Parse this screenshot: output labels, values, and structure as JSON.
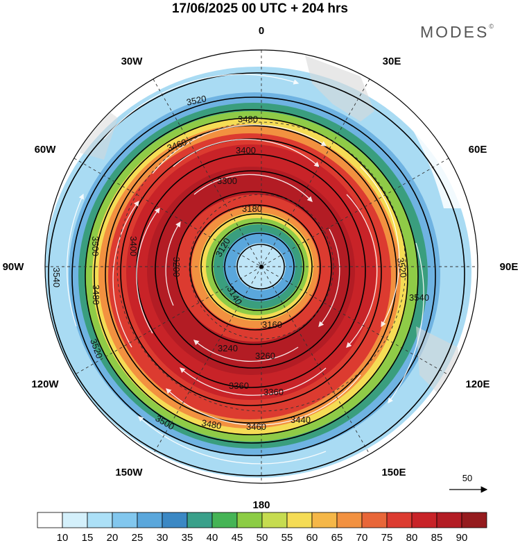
{
  "title": "17/06/2025  00 UTC  + 204 hrs",
  "brand": "MODES",
  "brand_mark": "©",
  "longitude_labels": {
    "north": "0",
    "ne": "30E",
    "ene": "60E",
    "east": "90E",
    "ese": "120E",
    "se": "150E",
    "south": "180",
    "sw": "150W",
    "wsw": "120W",
    "west": "90W",
    "wnw": "60W",
    "nw": "30W"
  },
  "contour_labels": [
    "3520",
    "3480",
    "3460",
    "3400",
    "3300",
    "3180",
    "3120",
    "3140",
    "3160",
    "3200",
    "3240",
    "3260",
    "3360",
    "3440",
    "3500",
    "3540",
    "3480",
    "3520",
    "3500",
    "3400",
    "3360",
    "3460",
    "3480",
    "3540",
    "3520"
  ],
  "reference_vector_label": "50",
  "colorbar": {
    "labels": [
      "10",
      "15",
      "20",
      "25",
      "30",
      "35",
      "40",
      "45",
      "50",
      "55",
      "60",
      "65",
      "70",
      "75",
      "80",
      "85",
      "90"
    ],
    "colors": [
      "#ffffff",
      "#d4f0fb",
      "#ace0f7",
      "#82c7ee",
      "#5aa7dc",
      "#3b88c4",
      "#3aa08a",
      "#45b455",
      "#8ccc44",
      "#c6dc50",
      "#f5dc55",
      "#f5b748",
      "#f29140",
      "#e86638",
      "#dc3b30",
      "#c82328",
      "#b31c24",
      "#951b1e"
    ]
  },
  "map_colors": {
    "ring_outer": "#a9dbf3",
    "ring_2": "#6fb3e2",
    "ring_3": "#3a9e7e",
    "ring_4": "#8fcb47",
    "ring_5": "#f5dc55",
    "ring_6": "#f29140",
    "ring_7": "#dc3b30",
    "ring_8": "#c82328",
    "core_inner": "#b31c24",
    "pole_hole": "#bfe5f7",
    "land": "#d8d8d8"
  }
}
